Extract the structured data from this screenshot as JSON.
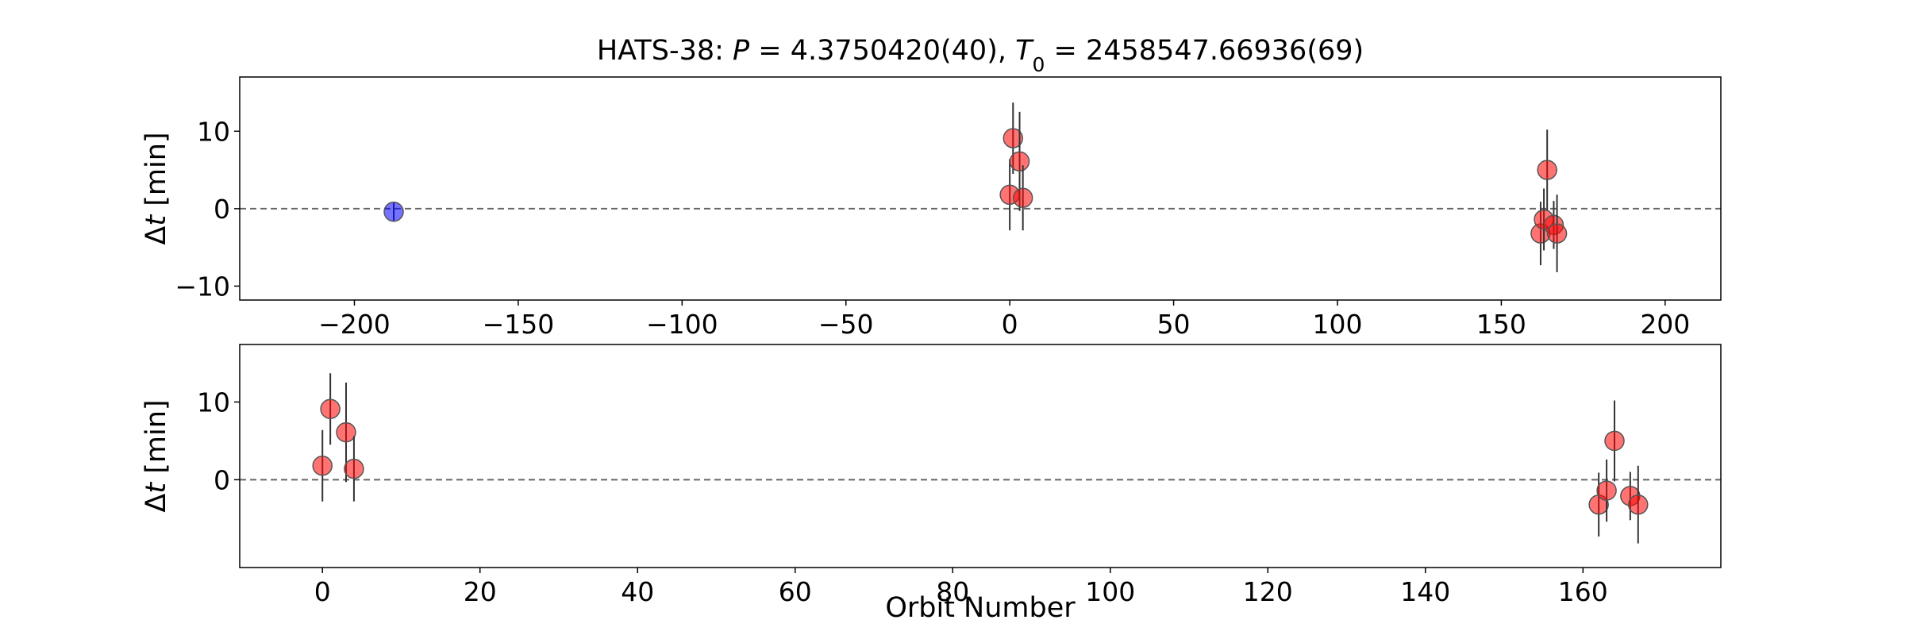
{
  "chart_data": [
    {
      "type": "scatter",
      "title_parts": [
        "HATS-38: ",
        "P",
        " = 4.3750420(40), ",
        "T",
        "0",
        " = 2458547.66936(69)"
      ],
      "xlabel": "",
      "ylabel_parts": [
        "Δ",
        "t",
        " [min]"
      ],
      "xlim": [
        -235,
        217
      ],
      "ylim": [
        -11.8,
        17
      ],
      "xticks": [
        -200,
        -150,
        -100,
        -50,
        0,
        50,
        100,
        150,
        200
      ],
      "xtick_labels": [
        "−200",
        "−150",
        "−100",
        "−50",
        "0",
        "50",
        "100",
        "150",
        "200"
      ],
      "yticks": [
        -10,
        0,
        10
      ],
      "ytick_labels": [
        "−10",
        "0",
        "10"
      ],
      "reference_line_y": 0,
      "grid": false,
      "series": [
        {
          "color": "#ff0000",
          "points": [
            {
              "x": 0,
              "y": 1.8,
              "err": 4.6
            },
            {
              "x": 1,
              "y": 9.1,
              "err": 4.6
            },
            {
              "x": 3,
              "y": 6.1,
              "err": 6.4
            },
            {
              "x": 4,
              "y": 1.4,
              "err": 4.2
            },
            {
              "x": 162,
              "y": -3.2,
              "err": 4.1
            },
            {
              "x": 163,
              "y": -1.4,
              "err": 4.0
            },
            {
              "x": 164,
              "y": 5.0,
              "err": 5.2
            },
            {
              "x": 166,
              "y": -2.1,
              "err": 3.1
            },
            {
              "x": 167,
              "y": -3.2,
              "err": 5.0
            }
          ]
        },
        {
          "color": "#0000ff",
          "points": [
            {
              "x": -188,
              "y": -0.4,
              "err": 1.2
            }
          ]
        }
      ]
    },
    {
      "type": "scatter",
      "xlabel": "Orbit Number",
      "ylabel_parts": [
        "Δ",
        "t",
        " [min]"
      ],
      "xlim": [
        -10.5,
        177.5
      ],
      "ylim": [
        -11.3,
        17.4
      ],
      "xticks": [
        0,
        20,
        40,
        60,
        80,
        100,
        120,
        140,
        160
      ],
      "xtick_labels": [
        "0",
        "20",
        "40",
        "60",
        "80",
        "100",
        "120",
        "140",
        "160"
      ],
      "yticks": [
        0,
        10
      ],
      "ytick_labels": [
        "0",
        "10"
      ],
      "reference_line_y": 0,
      "grid": false,
      "series": [
        {
          "color": "#ff0000",
          "points": [
            {
              "x": 0,
              "y": 1.8,
              "err": 4.6
            },
            {
              "x": 1,
              "y": 9.1,
              "err": 4.6
            },
            {
              "x": 3,
              "y": 6.1,
              "err": 6.4
            },
            {
              "x": 4,
              "y": 1.4,
              "err": 4.2
            },
            {
              "x": 162,
              "y": -3.2,
              "err": 4.1
            },
            {
              "x": 163,
              "y": -1.4,
              "err": 4.0
            },
            {
              "x": 164,
              "y": 5.0,
              "err": 5.2
            },
            {
              "x": 166,
              "y": -2.1,
              "err": 3.1
            },
            {
              "x": 167,
              "y": -3.2,
              "err": 5.0
            }
          ]
        }
      ]
    }
  ]
}
